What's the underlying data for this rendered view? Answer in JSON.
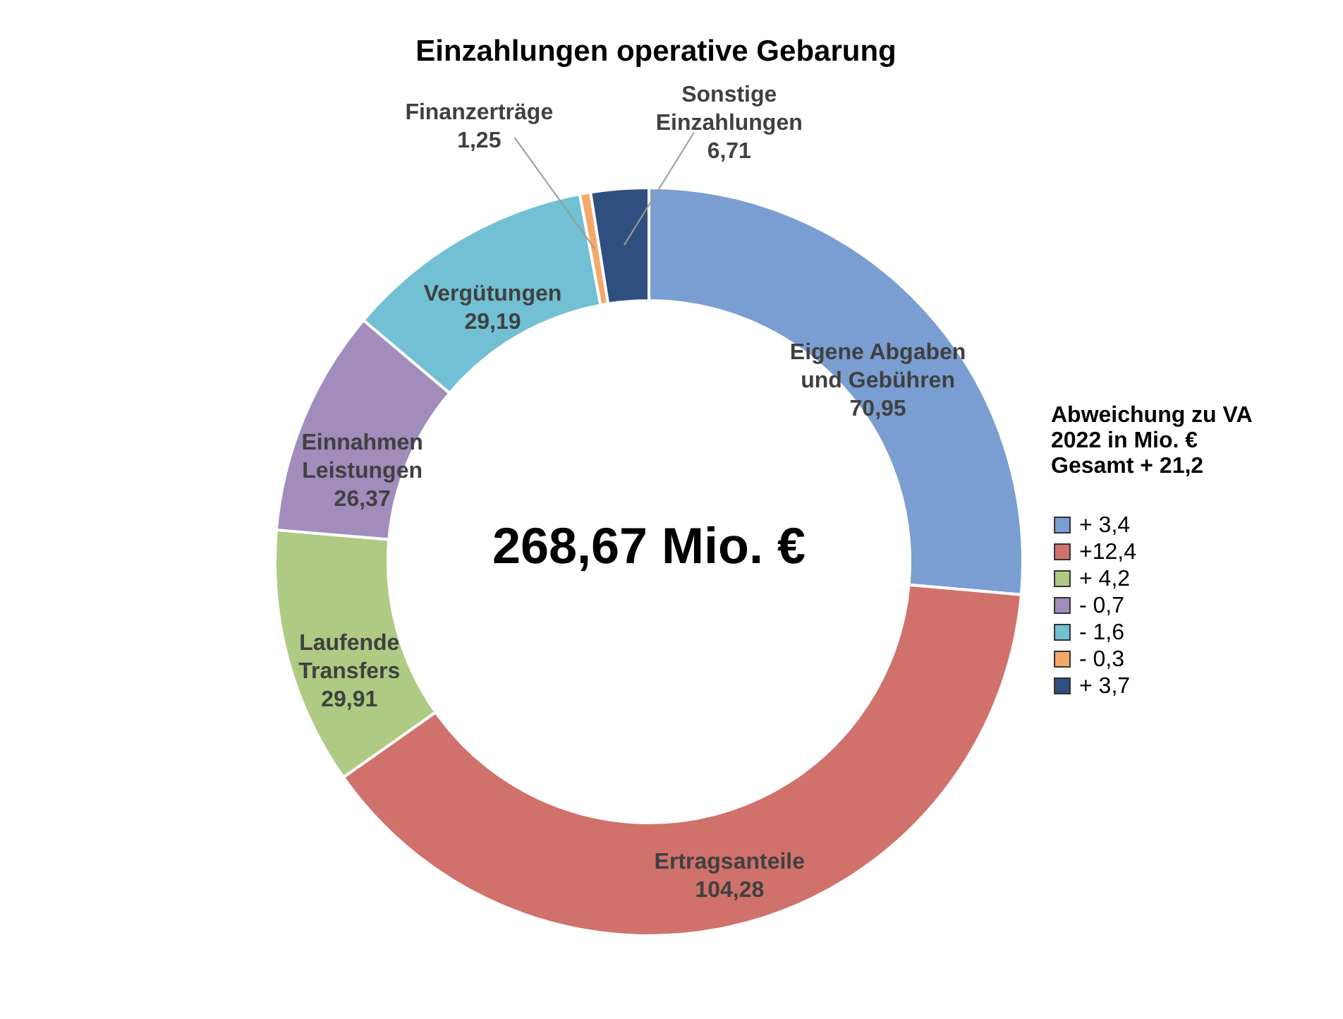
{
  "chart_data": {
    "type": "donut",
    "title": "Einzahlungen operative Gebarung",
    "categories": [
      "Eigene Abgaben und Gebühren",
      "Ertragsanteile",
      "Laufende Transfers",
      "Einnahmen Leistungen",
      "Vergütungen",
      "Finanzerträge",
      "Sonstige Einzahlungen"
    ],
    "values": [
      70.95,
      104.28,
      29.91,
      26.37,
      29.19,
      1.25,
      6.71
    ],
    "colors": [
      "#7a9ed2",
      "#d0716c",
      "#afca82",
      "#a18cbc",
      "#72c0d3",
      "#f6a869",
      "#2f4f80"
    ],
    "value_labels": [
      "70,95",
      "104,28",
      "29,91",
      "26,37",
      "29,19",
      "1,25",
      "6,71"
    ],
    "legend_title": "Abweichung zu VA 2022 in Mio. €",
    "annotations": [
      "268,67 Mio. €",
      "Gesamt   + 21,2",
      "+  3,4",
      "+12,4",
      "+  4,2",
      "-   0,7",
      "-   1,6",
      "-   0,3",
      "+  3,7"
    ]
  }
}
